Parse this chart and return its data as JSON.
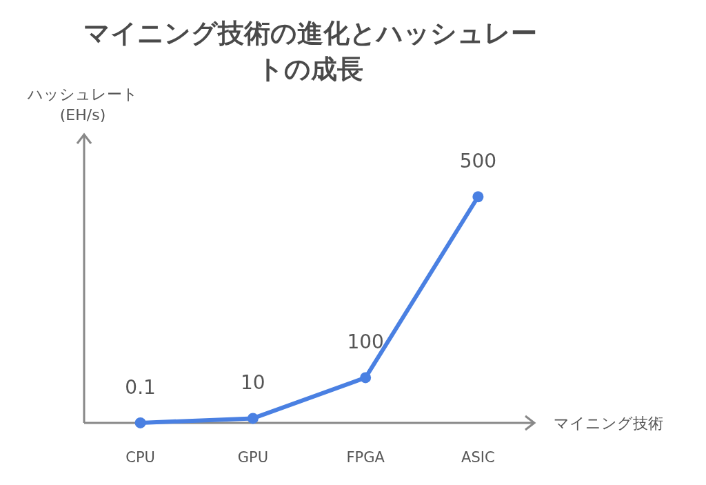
{
  "chart_data": {
    "type": "line",
    "title": "マイニング技術の進化とハッシュレートの成長",
    "ylabel": "ハッシュレート (EH/s)",
    "xlabel": "マイニング技術",
    "categories": [
      "CPU",
      "GPU",
      "FPGA",
      "ASIC"
    ],
    "series": [
      {
        "color": "#4a80e2",
        "values": [
          0.1,
          10,
          100,
          500
        ]
      }
    ],
    "data_labels": true,
    "marker": "circle"
  }
}
